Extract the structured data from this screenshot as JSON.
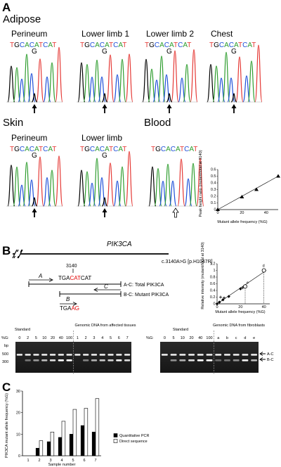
{
  "panelA": {
    "letter": "A",
    "section_adipose": "Adipose",
    "section_skin": "Skin",
    "section_blood": "Blood",
    "traces": [
      {
        "label": "Perineum",
        "mutant": true
      },
      {
        "label": "Lower limb 1",
        "mutant": true
      },
      {
        "label": "Lower limb 2",
        "mutant": true
      },
      {
        "label": "Chest",
        "mutant": true
      },
      {
        "label": "Perineum",
        "mutant": true
      },
      {
        "label": "Lower limb",
        "mutant": true
      },
      {
        "label": "",
        "mutant": false
      }
    ],
    "seq_left": "TGCAC",
    "seq_a": "A",
    "seq_right": "T",
    "seq_cat": "CAT",
    "seq_g": "G",
    "seq_plain": "TGCACATCAT",
    "plot": {
      "ylabel": "Peak height ratio (mutant/total at 3140)",
      "xlabel": "Mutant allele frequency (%G)",
      "yticks": [
        "0",
        "0.1",
        "0.2",
        "0.3",
        "0.4",
        "0.5",
        "0.6"
      ],
      "xticks": [
        "0",
        "20",
        "40"
      ]
    }
  },
  "panelB": {
    "letter": "B",
    "gene": "PIK3CA",
    "mutation": "c.3140A>G [p.H1047R]",
    "pos": "3140",
    "seq_pre": "TGA",
    "seq_mut": "CAT",
    "seq_post": "CAT",
    "primer_a": "A",
    "primer_b": "B",
    "primer_c": "C",
    "amp_ac": "A-C: Total PIK3CA",
    "amp_bc": "B-C: Mutant PIK3CA",
    "b_seq_pre": "TGA",
    "b_seq_mut": "AG",
    "plot": {
      "ylabel": "Relative intensity (mutant/total at 3140)",
      "xlabel": "Mutant allele frequency (%G)",
      "yticks": [
        "0",
        "0.2",
        "0.4",
        "0.6",
        "0.8",
        "1",
        "1.2"
      ],
      "xticks": [
        "0",
        "20",
        "40"
      ],
      "labels": [
        "d",
        "e"
      ]
    },
    "gel1": {
      "header_left": "Standard",
      "header_right": "Genomic DNA from affected tissues",
      "row_label": "%G:",
      "lanes": [
        "0",
        "2",
        "5",
        "10",
        "20",
        "40",
        "100",
        "1",
        "2",
        "3",
        "4",
        "5",
        "6",
        "7"
      ],
      "bp": "bp",
      "bp_500": "500",
      "bp_300": "300"
    },
    "gel2": {
      "header_left": "Standard",
      "header_right": "Genomic DNA from fibroblasts",
      "row_label": "%G:",
      "lanes": [
        "0",
        "5",
        "10",
        "20",
        "40",
        "100",
        "a",
        "b",
        "c",
        "d",
        "e"
      ],
      "band_ac": "A-C",
      "band_bc": "B-C"
    }
  },
  "panelC": {
    "letter": "C",
    "chart_data": {
      "type": "bar",
      "categories": [
        "1",
        "2",
        "3",
        "4",
        "5",
        "6",
        "7"
      ],
      "series": [
        {
          "name": "Quantitative PCR",
          "values": [
            0,
            3.5,
            6.5,
            8.5,
            10,
            14,
            11
          ],
          "color": "#000000"
        },
        {
          "name": "Direct sequence",
          "values": [
            0,
            7,
            11,
            16,
            21.5,
            22,
            26.5
          ],
          "color": "#ffffff"
        }
      ],
      "ylim": [
        0,
        30
      ],
      "yticks": [
        "0",
        "10",
        "20",
        "30"
      ],
      "xlabel": "Sample number",
      "ylabel": "PIK3CA mutant allele frequency (%G)",
      "legend": "top-right"
    }
  }
}
